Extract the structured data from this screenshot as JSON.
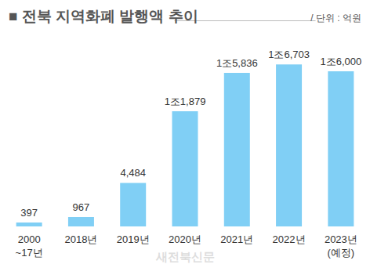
{
  "chart_data": {
    "type": "bar",
    "title": "■ 전북 지역화폐 발행액 추이",
    "subtitle": "/ 단위 : 억원",
    "annotations": [
      "새전북신문"
    ],
    "categories": [
      "2000\n~17년",
      "2018년",
      "2019년",
      "2020년",
      "2021년",
      "2022년",
      "2023년\n(예정)"
    ],
    "values": [
      397,
      967,
      4484,
      11879,
      15836,
      16703,
      16000
    ],
    "value_labels": [
      "397",
      "967",
      "4,484",
      "1조1,879",
      "1조5,836",
      "1조6,703",
      "1조6,000"
    ],
    "color": "#80cff5",
    "ylim": [
      0,
      18500
    ],
    "data_labels": true,
    "grid": false,
    "tick_labels": "x"
  }
}
